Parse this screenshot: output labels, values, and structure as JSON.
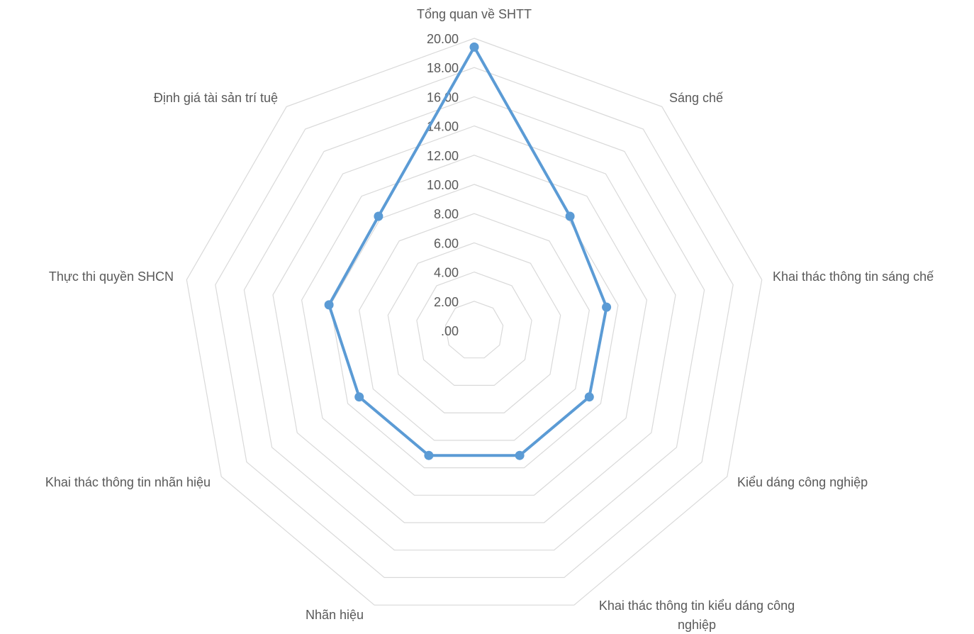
{
  "chart_data": {
    "type": "radar",
    "title": "",
    "categories": [
      "Tổng quan về SHTT",
      "Sáng chế",
      "Khai thác thông tin sáng chế",
      "Kiểu dáng công nghiệp",
      "Khai thác thông tin kiểu dáng công nghiệp",
      "Nhãn hiệu",
      "Khai thác thông tin nhãn hiệu",
      "Thực thi quyền SHCN",
      "Định giá tài sản trí tuệ"
    ],
    "category_lines": [
      [
        "Tổng quan về SHTT"
      ],
      [
        "Sáng chế"
      ],
      [
        "Khai thác thông tin sáng chế"
      ],
      [
        "Kiểu dáng công nghiệp"
      ],
      [
        "Khai thác thông tin kiểu dáng công",
        "nghiệp"
      ],
      [
        "Nhãn hiệu"
      ],
      [
        "Khai thác thông tin nhãn hiệu"
      ],
      [
        "Thực thi quyền SHCN"
      ],
      [
        "Định giá tài sản trí tuệ"
      ]
    ],
    "ticks": [
      ".00",
      "2.00",
      "4.00",
      "6.00",
      "8.00",
      "10.00",
      "12.00",
      "14.00",
      "16.00",
      "18.00",
      "20.00"
    ],
    "rmin": 0,
    "rmax": 20,
    "grid": true,
    "legend": "none",
    "series": [
      {
        "values": [
          19.4,
          10.2,
          9.2,
          9.1,
          9.1,
          9.1,
          9.1,
          10.1,
          10.2
        ],
        "color": "#5b9bd5"
      }
    ]
  }
}
